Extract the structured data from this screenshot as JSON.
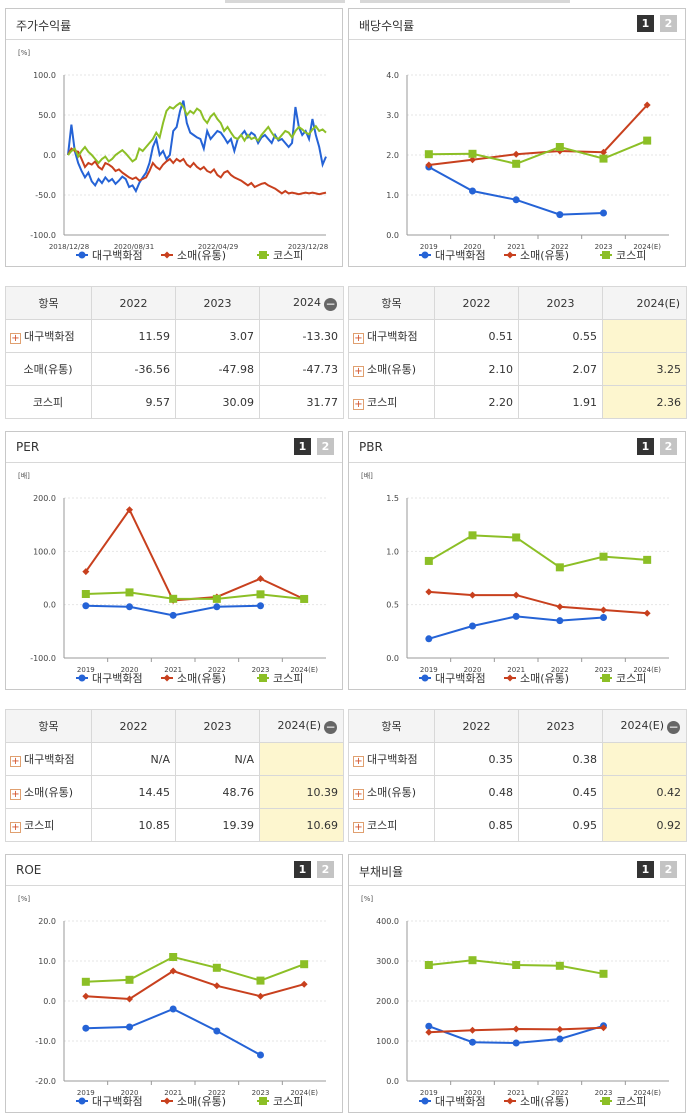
{
  "colors": {
    "s1": "#2563d6",
    "s2": "#c8401e",
    "s3": "#8cbf26"
  },
  "legend": [
    "대구백화점",
    "소매(유통)",
    "코스피"
  ],
  "panels": {
    "stock": {
      "title": "주가수익률"
    },
    "div": {
      "title": "배당수익률",
      "btn1": "1",
      "btn2": "2"
    },
    "per": {
      "title": "PER",
      "btn1": "1",
      "btn2": "2"
    },
    "pbr": {
      "title": "PBR",
      "btn1": "1",
      "btn2": "2"
    },
    "roe": {
      "title": "ROE",
      "btn1": "1",
      "btn2": "2"
    },
    "debt": {
      "title": "부채비율",
      "btn1": "1",
      "btn2": "2"
    }
  },
  "tables": {
    "stock": {
      "headers": [
        "항목",
        "2022",
        "2023",
        "2024"
      ],
      "minus": "−",
      "rows": [
        {
          "label": "대구백화점",
          "values": [
            "11.59",
            "3.07",
            "-13.30"
          ],
          "plus": true
        },
        {
          "label": "소매(유통)",
          "values": [
            "-36.56",
            "-47.98",
            "-47.73"
          ],
          "plus": false
        },
        {
          "label": "코스피",
          "values": [
            "9.57",
            "30.09",
            "31.77"
          ],
          "plus": false
        }
      ]
    },
    "div": {
      "headers": [
        "항목",
        "2022",
        "2023",
        "2024(E)"
      ],
      "rows": [
        {
          "label": "대구백화점",
          "values": [
            "0.51",
            "0.55",
            ""
          ],
          "plus": true
        },
        {
          "label": "소매(유통)",
          "values": [
            "2.10",
            "2.07",
            "3.25"
          ],
          "plus": true
        },
        {
          "label": "코스피",
          "values": [
            "2.20",
            "1.91",
            "2.36"
          ],
          "plus": true
        }
      ]
    },
    "per": {
      "headers": [
        "항목",
        "2022",
        "2023",
        "2024(E)"
      ],
      "minus": "−",
      "rows": [
        {
          "label": "대구백화점",
          "values": [
            "N/A",
            "N/A",
            ""
          ],
          "plus": true
        },
        {
          "label": "소매(유통)",
          "values": [
            "14.45",
            "48.76",
            "10.39"
          ],
          "plus": true
        },
        {
          "label": "코스피",
          "values": [
            "10.85",
            "19.39",
            "10.69"
          ],
          "plus": true
        }
      ]
    },
    "pbr": {
      "headers": [
        "항목",
        "2022",
        "2023",
        "2024(E)"
      ],
      "minus": "−",
      "rows": [
        {
          "label": "대구백화점",
          "values": [
            "0.35",
            "0.38",
            ""
          ],
          "plus": true
        },
        {
          "label": "소매(유통)",
          "values": [
            "0.48",
            "0.45",
            "0.42"
          ],
          "plus": true
        },
        {
          "label": "코스피",
          "values": [
            "0.85",
            "0.95",
            "0.92"
          ],
          "plus": true
        }
      ]
    }
  },
  "chart_data": [
    {
      "id": "stock",
      "type": "line",
      "unit": "[%]",
      "yticks": [
        "100.0",
        "50.0",
        "0.0",
        "-50.0",
        "-100.0"
      ],
      "ylim": [
        -100,
        100
      ],
      "xlabels": [
        "2018/12/28",
        "2020/08/31",
        "2022/04/29",
        "2023/12/28"
      ],
      "series": [
        {
          "name": "대구백화점",
          "values": [
            0,
            38,
            5,
            -10,
            -20,
            -28,
            -22,
            -33,
            -38,
            -30,
            -35,
            -28,
            -33,
            -30,
            -36,
            -32,
            -27,
            -30,
            -40,
            -38,
            -45,
            -35,
            -28,
            -22,
            -10,
            10,
            20,
            0,
            5,
            -5,
            0,
            30,
            35,
            55,
            68,
            40,
            28,
            25,
            22,
            20,
            8,
            30,
            20,
            25,
            30,
            28,
            22,
            15,
            20,
            5,
            20,
            25,
            30,
            22,
            28,
            25,
            15,
            22,
            25,
            20,
            15,
            25,
            18,
            20,
            15,
            10,
            15,
            60,
            35,
            25,
            30,
            20,
            45,
            25,
            10,
            -12,
            -2
          ]
        },
        {
          "name": "소매(유통)",
          "values": [
            0,
            8,
            5,
            4,
            -5,
            -15,
            -10,
            -12,
            -8,
            -15,
            -18,
            -10,
            -12,
            -15,
            -20,
            -18,
            -22,
            -25,
            -28,
            -30,
            -28,
            -32,
            -30,
            -28,
            -20,
            -10,
            -15,
            -18,
            -12,
            -8,
            -5,
            -10,
            -5,
            -8,
            -5,
            -12,
            -15,
            -10,
            -15,
            -18,
            -15,
            -20,
            -22,
            -18,
            -25,
            -28,
            -22,
            -20,
            -25,
            -28,
            -30,
            -32,
            -35,
            -38,
            -35,
            -40,
            -38,
            -36,
            -35,
            -38,
            -40,
            -42,
            -45,
            -48,
            -45,
            -48,
            -47,
            -48,
            -49,
            -48,
            -47,
            -48,
            -47,
            -48,
            -49,
            -48,
            -47
          ]
        },
        {
          "name": "코스피",
          "values": [
            0,
            5,
            8,
            -2,
            5,
            10,
            4,
            0,
            -5,
            -10,
            -5,
            -2,
            -8,
            -5,
            0,
            3,
            6,
            2,
            -3,
            -8,
            -5,
            8,
            5,
            10,
            15,
            20,
            28,
            22,
            40,
            55,
            60,
            58,
            62,
            65,
            60,
            50,
            55,
            52,
            58,
            55,
            45,
            40,
            48,
            52,
            45,
            40,
            30,
            35,
            28,
            22,
            20,
            25,
            18,
            25,
            20,
            22,
            18,
            25,
            30,
            35,
            28,
            22,
            20,
            25,
            30,
            28,
            22,
            30,
            35,
            32,
            28,
            26,
            32,
            36,
            30,
            32,
            28
          ]
        }
      ]
    },
    {
      "id": "div",
      "type": "line",
      "unit": "",
      "yticks": [
        "4.0",
        "3.0",
        "2.0",
        "1.0",
        "0.0"
      ],
      "ylim": [
        0,
        4
      ],
      "categories": [
        "2019",
        "2020",
        "2021",
        "2022",
        "2023",
        "2024(E)"
      ],
      "series": [
        {
          "name": "대구백화점",
          "values": [
            1.7,
            1.1,
            0.88,
            0.51,
            0.55,
            null
          ]
        },
        {
          "name": "소매(유통)",
          "values": [
            1.75,
            1.88,
            2.02,
            2.1,
            2.07,
            3.25
          ]
        },
        {
          "name": "코스피",
          "values": [
            2.02,
            2.03,
            1.78,
            2.2,
            1.91,
            2.36
          ]
        }
      ]
    },
    {
      "id": "per",
      "type": "line",
      "unit": "[배]",
      "yticks": [
        "200.0",
        "100.0",
        "0.0",
        "-100.0"
      ],
      "ylim": [
        -100,
        200
      ],
      "categories": [
        "2019",
        "2020",
        "2021",
        "2022",
        "2023",
        "2024(E)"
      ],
      "series": [
        {
          "name": "대구백화점",
          "values": [
            -2,
            -4,
            -20,
            -4,
            -2,
            null
          ]
        },
        {
          "name": "소매(유통)",
          "values": [
            62,
            178,
            8,
            14.45,
            48.76,
            10.39
          ]
        },
        {
          "name": "코스피",
          "values": [
            20,
            23,
            11,
            10.85,
            19.39,
            10.69
          ]
        }
      ]
    },
    {
      "id": "pbr",
      "type": "line",
      "unit": "[배]",
      "yticks": [
        "1.5",
        "1.0",
        "0.5",
        "0.0"
      ],
      "ylim": [
        0,
        1.5
      ],
      "categories": [
        "2019",
        "2020",
        "2021",
        "2022",
        "2023",
        "2024(E)"
      ],
      "series": [
        {
          "name": "대구백화점",
          "values": [
            0.18,
            0.3,
            0.39,
            0.35,
            0.38,
            null
          ]
        },
        {
          "name": "소매(유통)",
          "values": [
            0.62,
            0.59,
            0.59,
            0.48,
            0.45,
            0.42
          ]
        },
        {
          "name": "코스피",
          "values": [
            0.91,
            1.15,
            1.13,
            0.85,
            0.95,
            0.92
          ]
        }
      ]
    },
    {
      "id": "roe",
      "type": "line",
      "unit": "[%]",
      "yticks": [
        "20.0",
        "10.0",
        "0.0",
        "-10.0",
        "-20.0"
      ],
      "ylim": [
        -20,
        20
      ],
      "categories": [
        "2019",
        "2020",
        "2021",
        "2022",
        "2023",
        "2024(E)"
      ],
      "series": [
        {
          "name": "대구백화점",
          "values": [
            -6.8,
            -6.5,
            -2,
            -7.5,
            -13.5,
            null
          ]
        },
        {
          "name": "소매(유통)",
          "values": [
            1.2,
            0.5,
            7.5,
            3.8,
            1.2,
            4.2
          ]
        },
        {
          "name": "코스피",
          "values": [
            4.8,
            5.3,
            11,
            8.3,
            5.1,
            9.2
          ]
        }
      ]
    },
    {
      "id": "debt",
      "type": "line",
      "unit": "[%]",
      "yticks": [
        "400.0",
        "300.0",
        "200.0",
        "100.0",
        "0.0"
      ],
      "ylim": [
        0,
        400
      ],
      "categories": [
        "2019",
        "2020",
        "2021",
        "2022",
        "2023",
        "2024(E)"
      ],
      "series": [
        {
          "name": "대구백화점",
          "values": [
            137,
            97,
            95,
            105,
            138,
            null
          ]
        },
        {
          "name": "소매(유통)",
          "values": [
            122,
            127,
            130,
            129,
            133,
            null
          ]
        },
        {
          "name": "코스피",
          "values": [
            290,
            302,
            290,
            288,
            268,
            null
          ]
        }
      ]
    }
  ]
}
